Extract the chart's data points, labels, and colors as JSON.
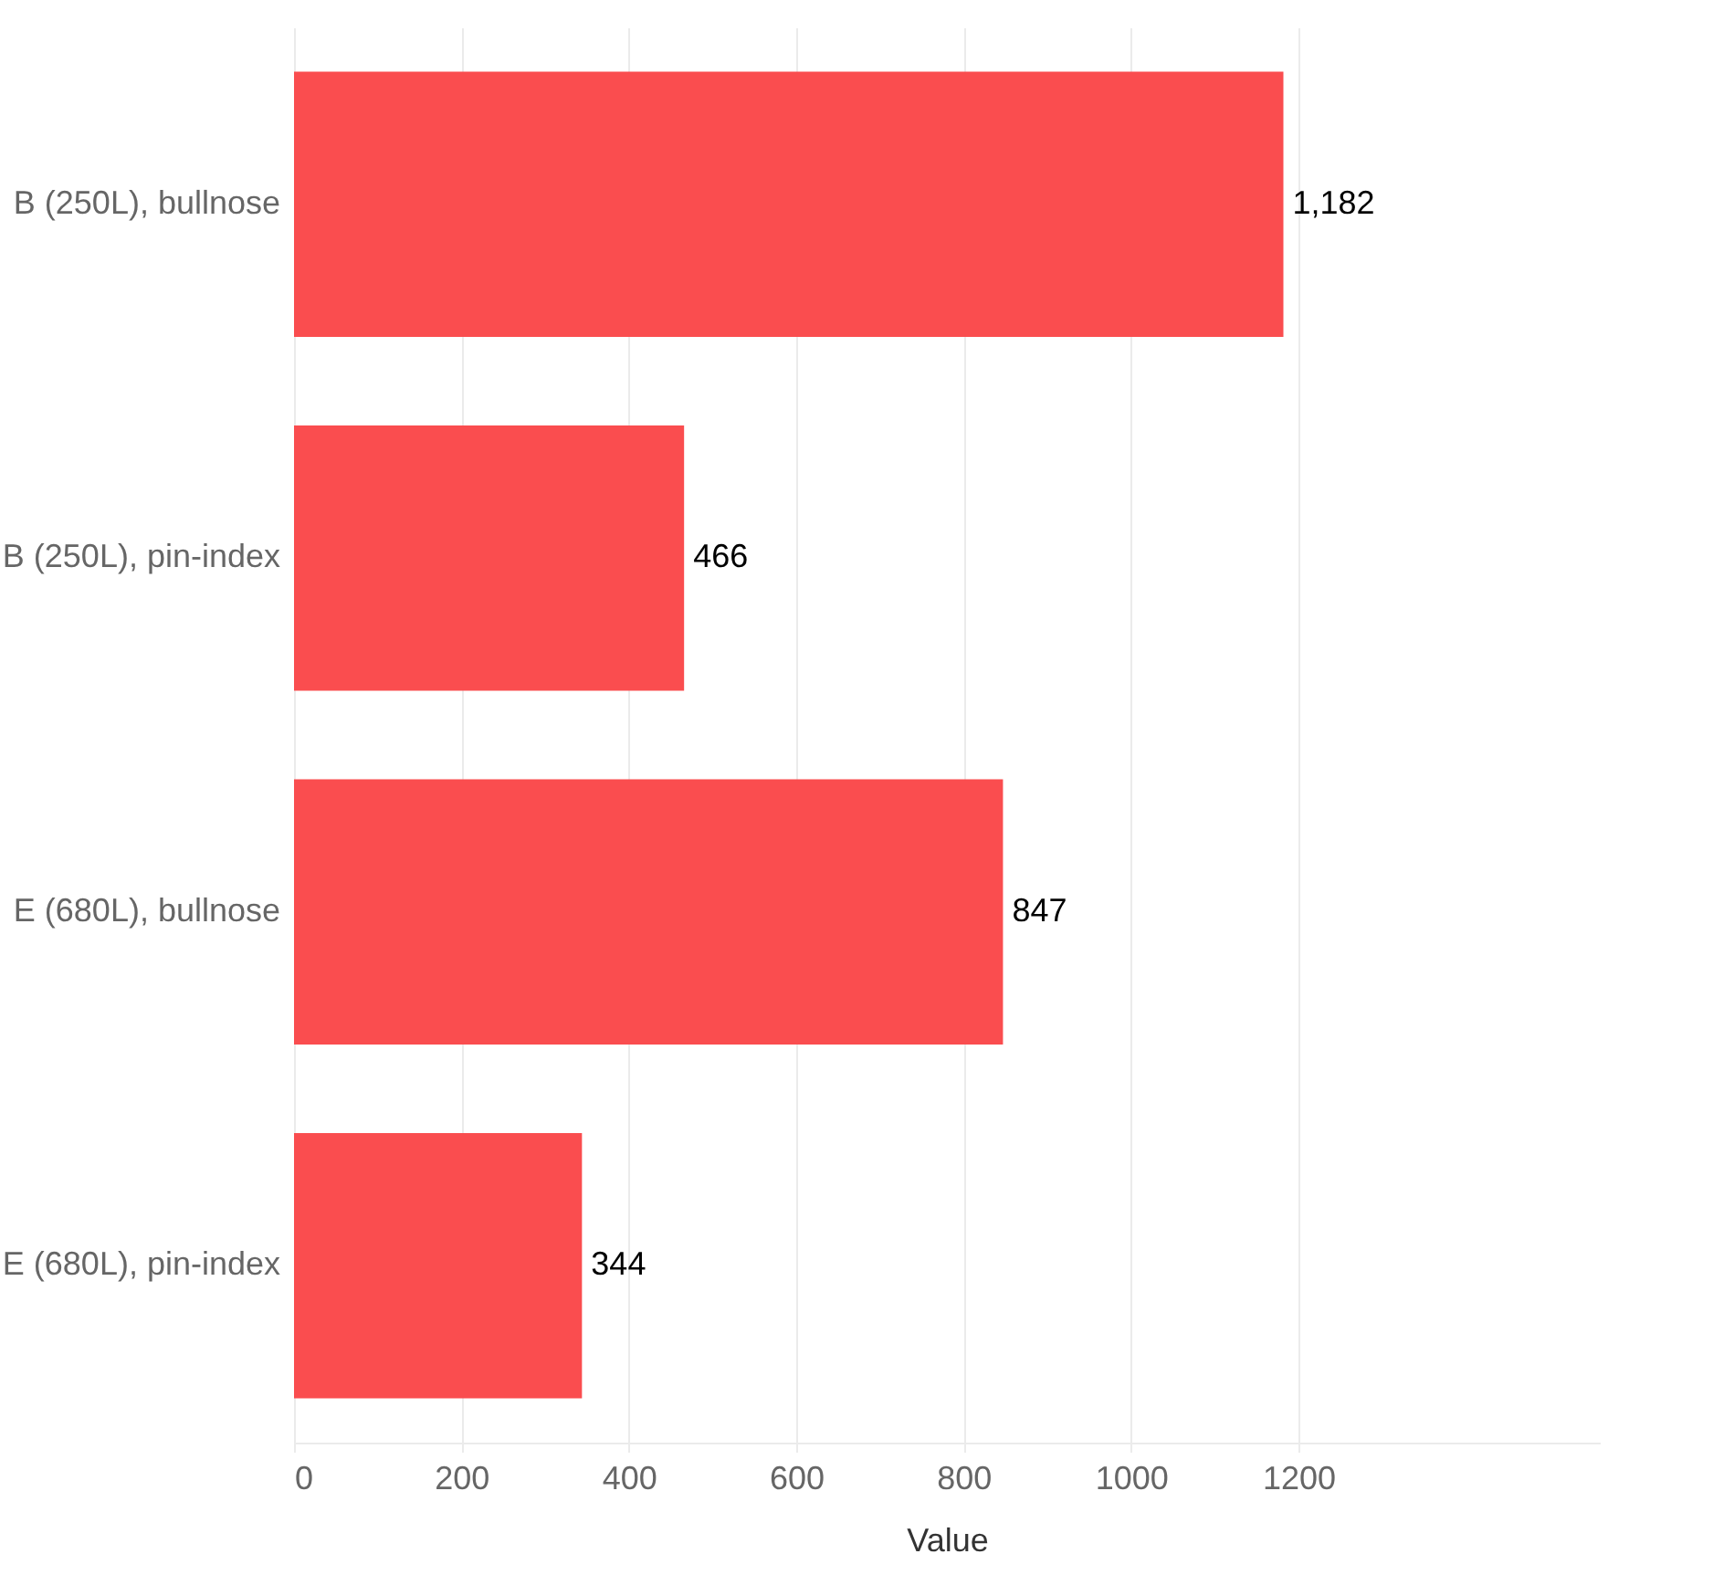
{
  "chart_data": {
    "type": "bar",
    "orientation": "horizontal",
    "xlabel": "Value",
    "categories": [
      "B (250L), bullnose",
      "B (250L), pin-index",
      "E (680L), bullnose",
      "E (680L), pin-index"
    ],
    "values": [
      1182,
      466,
      847,
      344
    ],
    "color": "#fa4d4f",
    "value_labels": [
      "1,182",
      "466",
      "847",
      "344"
    ],
    "xlim": [
      0,
      1560
    ],
    "xticks": [
      0,
      200,
      400,
      600,
      800,
      1000,
      1200
    ],
    "grid": "x"
  }
}
